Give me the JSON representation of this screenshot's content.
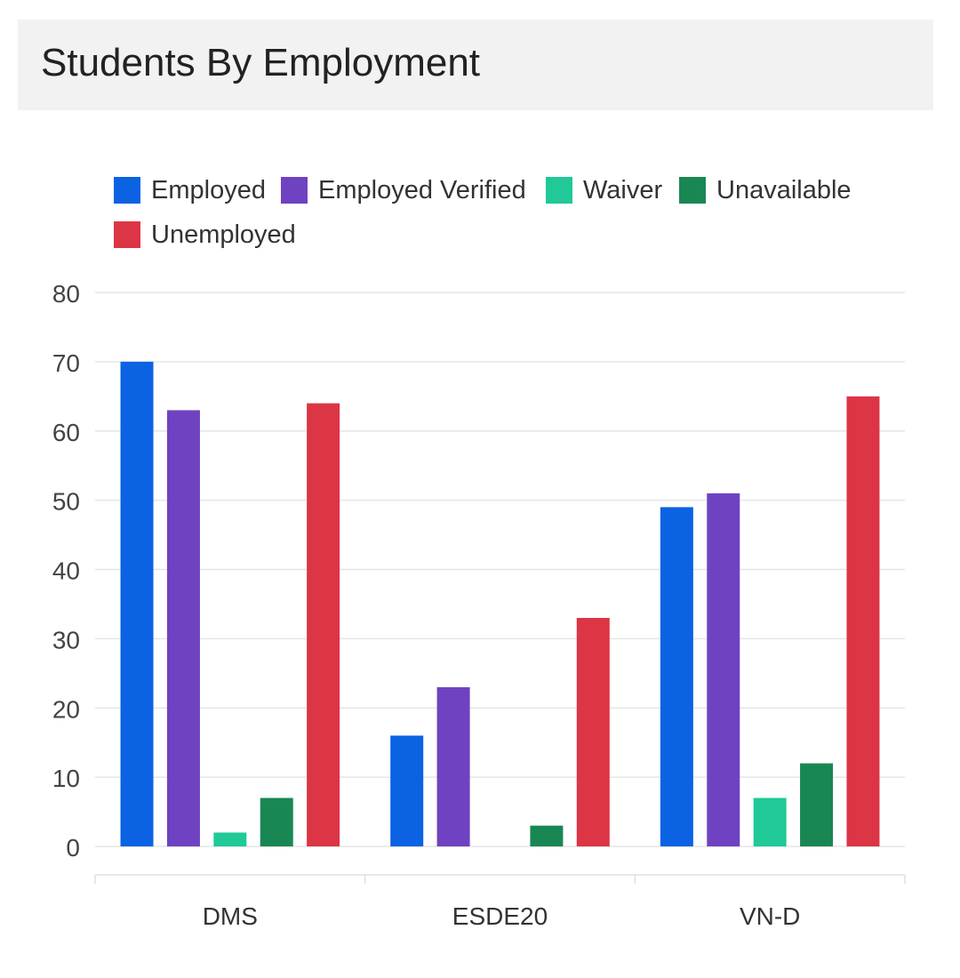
{
  "card": {
    "title": "Students By Employment"
  },
  "chart_data": {
    "type": "bar",
    "categories": [
      "DMS",
      "ESDE20",
      "VN-D"
    ],
    "series": [
      {
        "name": "Employed",
        "color": "#0b62e3",
        "values": [
          70,
          16,
          49
        ]
      },
      {
        "name": "Employed Verified",
        "color": "#6f42c1",
        "values": [
          63,
          23,
          51
        ]
      },
      {
        "name": "Waiver",
        "color": "#20c997",
        "values": [
          2,
          0,
          7
        ]
      },
      {
        "name": "Unavailable",
        "color": "#198754",
        "values": [
          7,
          3,
          12
        ]
      },
      {
        "name": "Unemployed",
        "color": "#dc3545",
        "values": [
          64,
          33,
          65
        ]
      }
    ],
    "ylim": [
      0,
      80
    ],
    "yticks": [
      "0",
      "10",
      "20",
      "30",
      "40",
      "50",
      "60",
      "70",
      "80"
    ],
    "grid": true,
    "legend_position": "top"
  }
}
